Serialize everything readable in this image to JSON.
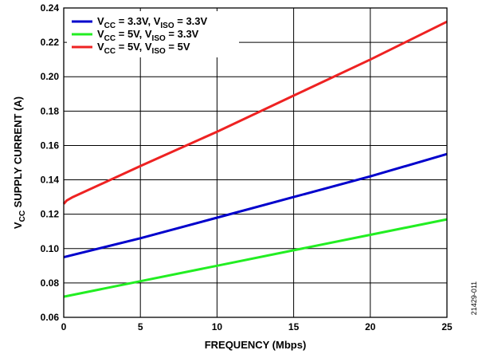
{
  "chart_data": {
    "type": "line",
    "xlabel": "FREQUENCY (Mbps)",
    "ylabel_main": "V",
    "ylabel_sub": "CC",
    "ylabel_rest": " SUPPLY CURRENT (A)",
    "xlim": [
      0,
      25
    ],
    "ylim": [
      0.06,
      0.24
    ],
    "xticks": [
      "0",
      "5",
      "10",
      "15",
      "20",
      "25"
    ],
    "xtick_values": [
      0,
      5,
      10,
      15,
      20,
      25
    ],
    "yticks": [
      "0.06",
      "0.08",
      "0.10",
      "0.12",
      "0.14",
      "0.16",
      "0.18",
      "0.20",
      "0.22",
      "0.24"
    ],
    "ytick_values": [
      0.06,
      0.08,
      0.1,
      0.12,
      0.14,
      0.16,
      0.18,
      0.2,
      0.22,
      0.24
    ],
    "grid": true,
    "legend_position": "top-left",
    "figure_id": "21429-011",
    "series": [
      {
        "name": "VCC = 3.3V, VISO = 3.3V",
        "legend_parts": [
          {
            "text": "V"
          },
          {
            "text": "CC",
            "sub": true
          },
          {
            "text": " = 3.3V, V"
          },
          {
            "text": "ISO",
            "sub": true
          },
          {
            "text": " = 3.3V"
          }
        ],
        "color": "#0000cc",
        "x": [
          0,
          5,
          10,
          15,
          20,
          25
        ],
        "y": [
          0.095,
          0.106,
          0.118,
          0.13,
          0.142,
          0.155
        ]
      },
      {
        "name": "VCC = 5V, VISO = 3.3V",
        "legend_parts": [
          {
            "text": "V"
          },
          {
            "text": "CC",
            "sub": true
          },
          {
            "text": " = 5V, V"
          },
          {
            "text": "ISO",
            "sub": true
          },
          {
            "text": " = 3.3V"
          }
        ],
        "color": "#22ee22",
        "x": [
          0,
          5,
          10,
          15,
          20,
          25
        ],
        "y": [
          0.072,
          0.081,
          0.09,
          0.099,
          0.108,
          0.117
        ]
      },
      {
        "name": "VCC = 5V, VISO = 5V",
        "legend_parts": [
          {
            "text": "V"
          },
          {
            "text": "CC",
            "sub": true
          },
          {
            "text": " = 5V, V"
          },
          {
            "text": "ISO",
            "sub": true
          },
          {
            "text": " = 5V"
          }
        ],
        "color": "#ee2222",
        "x": [
          0,
          0.2,
          0.6,
          5,
          10,
          15,
          20,
          25
        ],
        "y": [
          0.126,
          0.128,
          0.13,
          0.148,
          0.168,
          0.189,
          0.21,
          0.232
        ]
      }
    ]
  }
}
